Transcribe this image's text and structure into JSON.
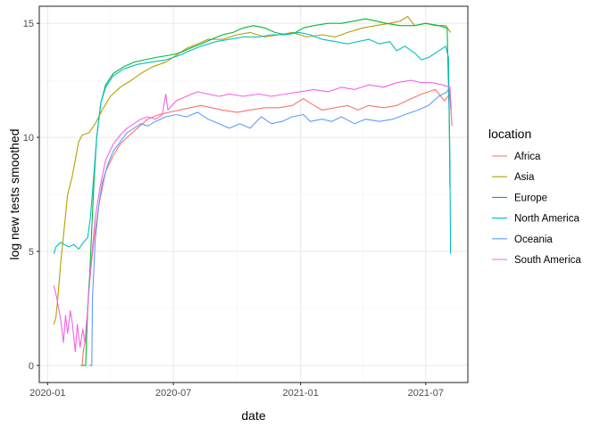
{
  "chart_data": {
    "type": "line",
    "xlabel": "date",
    "ylabel": "log new tests smoothed",
    "x_range": [
      "2019-12-20",
      "2021-08-31"
    ],
    "ylim": [
      -0.75,
      15.75
    ],
    "x_ticks": [
      {
        "date": "2020-01-01",
        "label": "2020-01"
      },
      {
        "date": "2020-07-01",
        "label": "2020-07"
      },
      {
        "date": "2021-01-01",
        "label": "2021-01"
      },
      {
        "date": "2021-07-01",
        "label": "2021-07"
      }
    ],
    "y_ticks": [
      0,
      5,
      10,
      15
    ],
    "y_tick_labels": [
      "0",
      "5",
      "10",
      "15"
    ],
    "grid": true,
    "legend": {
      "title": "location",
      "position": "right"
    },
    "series": [
      {
        "name": "Africa",
        "color": "#F8766D",
        "points": [
          [
            "2020-02-20",
            0
          ],
          [
            "2020-02-22",
            0.7
          ],
          [
            "2020-02-26",
            1.2
          ],
          [
            "2020-03-01",
            3.5
          ],
          [
            "2020-03-08",
            5.5
          ],
          [
            "2020-03-15",
            7.0
          ],
          [
            "2020-03-25",
            8.5
          ],
          [
            "2020-04-05",
            9.2
          ],
          [
            "2020-04-15",
            9.7
          ],
          [
            "2020-04-25",
            10.0
          ],
          [
            "2020-05-10",
            10.4
          ],
          [
            "2020-05-25",
            10.8
          ],
          [
            "2020-06-10",
            11.0
          ],
          [
            "2020-06-25",
            11.1
          ],
          [
            "2020-07-10",
            11.2
          ],
          [
            "2020-07-25",
            11.3
          ],
          [
            "2020-08-10",
            11.4
          ],
          [
            "2020-08-25",
            11.3
          ],
          [
            "2020-09-10",
            11.2
          ],
          [
            "2020-10-01",
            11.1
          ],
          [
            "2020-10-20",
            11.2
          ],
          [
            "2020-11-10",
            11.3
          ],
          [
            "2020-12-01",
            11.3
          ],
          [
            "2020-12-20",
            11.4
          ],
          [
            "2021-01-05",
            11.7
          ],
          [
            "2021-01-15",
            11.5
          ],
          [
            "2021-02-01",
            11.2
          ],
          [
            "2021-02-20",
            11.3
          ],
          [
            "2021-03-10",
            11.4
          ],
          [
            "2021-03-25",
            11.2
          ],
          [
            "2021-04-10",
            11.4
          ],
          [
            "2021-05-01",
            11.3
          ],
          [
            "2021-05-20",
            11.4
          ],
          [
            "2021-06-10",
            11.7
          ],
          [
            "2021-06-25",
            11.9
          ],
          [
            "2021-07-05",
            12.0
          ],
          [
            "2021-07-15",
            12.1
          ],
          [
            "2021-07-28",
            11.6
          ],
          [
            "2021-08-05",
            11.9
          ],
          [
            "2021-08-08",
            10.5
          ]
        ]
      },
      {
        "name": "Asia",
        "color": "#B79F00",
        "points": [
          [
            "2020-01-10",
            1.8
          ],
          [
            "2020-01-13",
            2.1
          ],
          [
            "2020-01-16",
            3.0
          ],
          [
            "2020-01-20",
            4.5
          ],
          [
            "2020-01-25",
            6.0
          ],
          [
            "2020-01-30",
            7.5
          ],
          [
            "2020-02-05",
            8.2
          ],
          [
            "2020-02-10",
            9.0
          ],
          [
            "2020-02-15",
            9.8
          ],
          [
            "2020-02-20",
            10.1
          ],
          [
            "2020-03-01",
            10.2
          ],
          [
            "2020-03-10",
            10.6
          ],
          [
            "2020-03-20",
            11.2
          ],
          [
            "2020-04-01",
            11.8
          ],
          [
            "2020-04-15",
            12.2
          ],
          [
            "2020-05-01",
            12.5
          ],
          [
            "2020-05-15",
            12.8
          ],
          [
            "2020-06-01",
            13.1
          ],
          [
            "2020-06-20",
            13.3
          ],
          [
            "2020-07-05",
            13.6
          ],
          [
            "2020-07-20",
            13.9
          ],
          [
            "2020-08-05",
            14.1
          ],
          [
            "2020-08-20",
            14.3
          ],
          [
            "2020-09-10",
            14.3
          ],
          [
            "2020-10-01",
            14.5
          ],
          [
            "2020-10-20",
            14.6
          ],
          [
            "2020-11-10",
            14.4
          ],
          [
            "2020-12-01",
            14.5
          ],
          [
            "2020-12-20",
            14.6
          ],
          [
            "2021-01-10",
            14.4
          ],
          [
            "2021-02-01",
            14.5
          ],
          [
            "2021-02-20",
            14.4
          ],
          [
            "2021-03-10",
            14.6
          ],
          [
            "2021-04-01",
            14.8
          ],
          [
            "2021-04-20",
            14.9
          ],
          [
            "2021-05-10",
            15.0
          ],
          [
            "2021-05-25",
            15.1
          ],
          [
            "2021-06-05",
            15.3
          ],
          [
            "2021-06-15",
            14.9
          ],
          [
            "2021-07-01",
            15.0
          ],
          [
            "2021-07-15",
            14.9
          ],
          [
            "2021-07-30",
            14.9
          ],
          [
            "2021-08-06",
            14.6
          ]
        ]
      },
      {
        "name": "Europe",
        "color": "#00BA38",
        "points": [
          [
            "2020-02-18",
            0
          ],
          [
            "2020-02-25",
            0
          ],
          [
            "2020-02-28",
            2.5
          ],
          [
            "2020-03-02",
            4.0
          ],
          [
            "2020-03-05",
            6.0
          ],
          [
            "2020-03-08",
            8.0
          ],
          [
            "2020-03-12",
            10.0
          ],
          [
            "2020-03-18",
            11.5
          ],
          [
            "2020-03-25",
            12.3
          ],
          [
            "2020-04-05",
            12.8
          ],
          [
            "2020-04-20",
            13.1
          ],
          [
            "2020-05-05",
            13.3
          ],
          [
            "2020-05-20",
            13.4
          ],
          [
            "2020-06-05",
            13.5
          ],
          [
            "2020-06-25",
            13.6
          ],
          [
            "2020-07-10",
            13.7
          ],
          [
            "2020-07-25",
            13.9
          ],
          [
            "2020-08-10",
            14.1
          ],
          [
            "2020-08-25",
            14.3
          ],
          [
            "2020-09-10",
            14.5
          ],
          [
            "2020-09-25",
            14.6
          ],
          [
            "2020-10-10",
            14.8
          ],
          [
            "2020-10-25",
            14.9
          ],
          [
            "2020-11-10",
            14.8
          ],
          [
            "2020-11-25",
            14.6
          ],
          [
            "2020-12-10",
            14.5
          ],
          [
            "2020-12-25",
            14.6
          ],
          [
            "2021-01-05",
            14.8
          ],
          [
            "2021-01-20",
            14.9
          ],
          [
            "2021-02-10",
            15.0
          ],
          [
            "2021-03-01",
            15.0
          ],
          [
            "2021-03-20",
            15.1
          ],
          [
            "2021-04-05",
            15.2
          ],
          [
            "2021-04-20",
            15.1
          ],
          [
            "2021-05-05",
            15.0
          ],
          [
            "2021-05-25",
            14.9
          ],
          [
            "2021-06-15",
            14.9
          ],
          [
            "2021-07-01",
            15.0
          ],
          [
            "2021-07-20",
            14.9
          ],
          [
            "2021-08-01",
            14.8
          ],
          [
            "2021-08-04",
            11.0
          ],
          [
            "2021-08-05",
            7.8
          ]
        ]
      },
      {
        "name": "North America",
        "color": "#00BFC4",
        "points": [
          [
            "2020-01-10",
            4.9
          ],
          [
            "2020-01-13",
            5.2
          ],
          [
            "2020-01-20",
            5.4
          ],
          [
            "2020-01-25",
            5.3
          ],
          [
            "2020-02-01",
            5.2
          ],
          [
            "2020-02-08",
            5.3
          ],
          [
            "2020-02-15",
            5.1
          ],
          [
            "2020-02-22",
            5.4
          ],
          [
            "2020-02-28",
            5.6
          ],
          [
            "2020-03-03",
            6.5
          ],
          [
            "2020-03-07",
            8.0
          ],
          [
            "2020-03-12",
            10.0
          ],
          [
            "2020-03-18",
            11.5
          ],
          [
            "2020-03-25",
            12.2
          ],
          [
            "2020-04-05",
            12.7
          ],
          [
            "2020-04-20",
            13.0
          ],
          [
            "2020-05-10",
            13.2
          ],
          [
            "2020-05-30",
            13.3
          ],
          [
            "2020-06-20",
            13.4
          ],
          [
            "2020-07-10",
            13.6
          ],
          [
            "2020-07-25",
            13.8
          ],
          [
            "2020-08-10",
            14.0
          ],
          [
            "2020-09-01",
            14.2
          ],
          [
            "2020-09-20",
            14.3
          ],
          [
            "2020-10-10",
            14.4
          ],
          [
            "2020-11-01",
            14.4
          ],
          [
            "2020-11-20",
            14.5
          ],
          [
            "2020-12-10",
            14.5
          ],
          [
            "2020-12-30",
            14.6
          ],
          [
            "2021-01-15",
            14.5
          ],
          [
            "2021-02-01",
            14.3
          ],
          [
            "2021-02-20",
            14.2
          ],
          [
            "2021-03-10",
            14.1
          ],
          [
            "2021-03-25",
            14.2
          ],
          [
            "2021-04-10",
            14.3
          ],
          [
            "2021-04-25",
            14.1
          ],
          [
            "2021-05-10",
            14.2
          ],
          [
            "2021-05-20",
            13.8
          ],
          [
            "2021-06-01",
            14.0
          ],
          [
            "2021-06-15",
            13.7
          ],
          [
            "2021-06-25",
            13.4
          ],
          [
            "2021-07-05",
            13.5
          ],
          [
            "2021-07-20",
            13.8
          ],
          [
            "2021-07-30",
            14.0
          ],
          [
            "2021-08-03",
            13.5
          ],
          [
            "2021-08-05",
            9.0
          ],
          [
            "2021-08-06",
            4.9
          ]
        ]
      },
      {
        "name": "Oceania",
        "color": "#619CFF",
        "points": [
          [
            "2020-03-01",
            0
          ],
          [
            "2020-03-05",
            0
          ],
          [
            "2020-03-06",
            3.0
          ],
          [
            "2020-03-10",
            5.5
          ],
          [
            "2020-03-15",
            7.0
          ],
          [
            "2020-03-20",
            8.0
          ],
          [
            "2020-03-28",
            8.8
          ],
          [
            "2020-04-05",
            9.4
          ],
          [
            "2020-04-15",
            9.8
          ],
          [
            "2020-04-25",
            10.2
          ],
          [
            "2020-05-05",
            10.4
          ],
          [
            "2020-05-15",
            10.6
          ],
          [
            "2020-05-25",
            10.5
          ],
          [
            "2020-06-05",
            10.7
          ],
          [
            "2020-06-20",
            10.9
          ],
          [
            "2020-07-05",
            11.0
          ],
          [
            "2020-07-20",
            10.9
          ],
          [
            "2020-08-05",
            11.1
          ],
          [
            "2020-08-20",
            10.8
          ],
          [
            "2020-09-05",
            10.6
          ],
          [
            "2020-09-20",
            10.4
          ],
          [
            "2020-10-05",
            10.6
          ],
          [
            "2020-10-20",
            10.4
          ],
          [
            "2020-11-05",
            10.9
          ],
          [
            "2020-11-20",
            10.6
          ],
          [
            "2020-12-05",
            10.7
          ],
          [
            "2020-12-20",
            10.9
          ],
          [
            "2021-01-05",
            11.0
          ],
          [
            "2021-01-15",
            10.7
          ],
          [
            "2021-02-01",
            10.8
          ],
          [
            "2021-02-15",
            10.7
          ],
          [
            "2021-03-01",
            10.9
          ],
          [
            "2021-03-20",
            10.6
          ],
          [
            "2021-04-05",
            10.8
          ],
          [
            "2021-04-25",
            10.7
          ],
          [
            "2021-05-15",
            10.8
          ],
          [
            "2021-06-01",
            11.0
          ],
          [
            "2021-06-20",
            11.2
          ],
          [
            "2021-07-05",
            11.4
          ],
          [
            "2021-07-20",
            11.8
          ],
          [
            "2021-08-01",
            12.0
          ],
          [
            "2021-08-04",
            12.2
          ],
          [
            "2021-08-07",
            11.2
          ]
        ]
      },
      {
        "name": "South America",
        "color": "#F564E3",
        "points": [
          [
            "2020-01-10",
            3.5
          ],
          [
            "2020-01-14",
            3.0
          ],
          [
            "2020-01-17",
            2.5
          ],
          [
            "2020-01-20",
            2.0
          ],
          [
            "2020-01-24",
            1.0
          ],
          [
            "2020-01-27",
            2.2
          ],
          [
            "2020-01-30",
            1.4
          ],
          [
            "2020-02-03",
            2.4
          ],
          [
            "2020-02-06",
            1.8
          ],
          [
            "2020-02-10",
            0.6
          ],
          [
            "2020-02-13",
            1.8
          ],
          [
            "2020-02-17",
            0.8
          ],
          [
            "2020-02-21",
            1.6
          ],
          [
            "2020-02-24",
            1.0
          ],
          [
            "2020-02-28",
            2.5
          ],
          [
            "2020-03-04",
            4.5
          ],
          [
            "2020-03-10",
            6.5
          ],
          [
            "2020-03-18",
            8.0
          ],
          [
            "2020-03-25",
            9.0
          ],
          [
            "2020-04-05",
            9.7
          ],
          [
            "2020-04-15",
            10.1
          ],
          [
            "2020-04-25",
            10.4
          ],
          [
            "2020-05-05",
            10.6
          ],
          [
            "2020-05-15",
            10.8
          ],
          [
            "2020-05-25",
            10.9
          ],
          [
            "2020-06-05",
            10.8
          ],
          [
            "2020-06-15",
            11.0
          ],
          [
            "2020-06-20",
            11.9
          ],
          [
            "2020-06-23",
            11.2
          ],
          [
            "2020-07-05",
            11.6
          ],
          [
            "2020-07-20",
            11.8
          ],
          [
            "2020-08-05",
            12.0
          ],
          [
            "2020-08-20",
            11.9
          ],
          [
            "2020-09-05",
            11.8
          ],
          [
            "2020-09-20",
            11.9
          ],
          [
            "2020-10-10",
            11.8
          ],
          [
            "2020-11-01",
            11.9
          ],
          [
            "2020-11-20",
            11.8
          ],
          [
            "2020-12-10",
            11.9
          ],
          [
            "2021-01-01",
            12.0
          ],
          [
            "2021-01-20",
            12.1
          ],
          [
            "2021-02-10",
            12.0
          ],
          [
            "2021-03-01",
            12.2
          ],
          [
            "2021-03-20",
            12.1
          ],
          [
            "2021-04-10",
            12.3
          ],
          [
            "2021-05-01",
            12.2
          ],
          [
            "2021-05-20",
            12.4
          ],
          [
            "2021-06-10",
            12.5
          ],
          [
            "2021-06-25",
            12.4
          ],
          [
            "2021-07-10",
            12.4
          ],
          [
            "2021-07-25",
            12.3
          ],
          [
            "2021-08-05",
            12.2
          ],
          [
            "2021-08-07",
            11.3
          ]
        ]
      }
    ]
  }
}
